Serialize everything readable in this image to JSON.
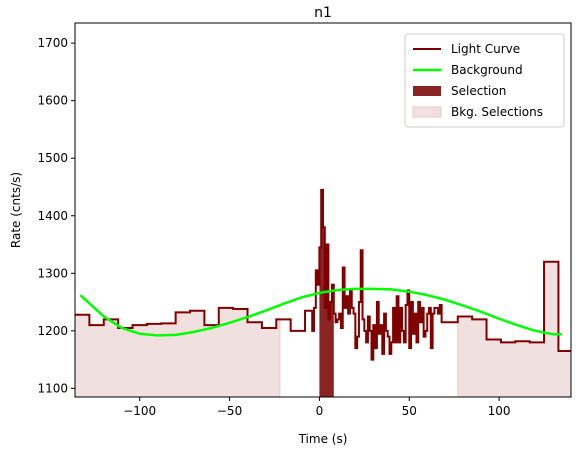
{
  "chart_data": {
    "type": "line",
    "title": "n1",
    "xlabel": "Time (s)",
    "ylabel": "Rate (cnts/s)",
    "xlim": [
      -136,
      140
    ],
    "ylim": [
      1085,
      1735
    ],
    "xticks": [
      -100,
      -50,
      0,
      50,
      100
    ],
    "yticks": [
      1100,
      1200,
      1300,
      1400,
      1500,
      1600,
      1700
    ],
    "legend_position": "top-right",
    "colors": {
      "light_curve": "#800000",
      "background": "#00ff00",
      "selection": "#8b2323",
      "bkg_selection": "#f0e0e0",
      "bkg_selection_edge": "#e8c8c8"
    },
    "legend": [
      {
        "label": "Light Curve",
        "kind": "line",
        "color": "#800000"
      },
      {
        "label": "Background",
        "kind": "line",
        "color": "#00ff00"
      },
      {
        "label": "Selection",
        "kind": "patch",
        "color": "#8b2323"
      },
      {
        "label": "Bkg. Selections",
        "kind": "patch",
        "color": "#f0e0e0"
      }
    ],
    "bkg_selections": [
      {
        "x_start": -136,
        "x_end": -22
      },
      {
        "x_start": 77,
        "x_end": 140
      }
    ],
    "selection": {
      "x_start": 0,
      "x_end": 8
    },
    "background_series": {
      "name": "Background",
      "x": [
        -133,
        -120,
        -110,
        -100,
        -90,
        -80,
        -70,
        -60,
        -50,
        -40,
        -30,
        -20,
        -10,
        0,
        10,
        20,
        30,
        40,
        50,
        60,
        70,
        80,
        90,
        100,
        110,
        120,
        130,
        135
      ],
      "y": [
        1262,
        1225,
        1205,
        1195,
        1192,
        1193,
        1198,
        1205,
        1214,
        1224,
        1235,
        1247,
        1258,
        1266,
        1271,
        1273,
        1273,
        1272,
        1268,
        1262,
        1254,
        1244,
        1233,
        1221,
        1210,
        1200,
        1194,
        1194
      ]
    },
    "light_curve": {
      "name": "Light Curve",
      "x": [
        -136,
        -128,
        -120,
        -112,
        -104,
        -96,
        -88,
        -80,
        -72,
        -64,
        -56,
        -48,
        -40,
        -32,
        -24,
        -16,
        -8,
        -4,
        -3,
        -2,
        -1,
        0,
        1,
        2,
        3,
        4,
        5,
        6,
        7,
        8,
        9,
        10,
        11,
        12,
        13,
        14,
        15,
        16,
        17,
        18,
        19,
        20,
        21,
        22,
        23,
        24,
        25,
        26,
        27,
        28,
        29,
        30,
        31,
        32,
        33,
        34,
        35,
        36,
        37,
        38,
        39,
        40,
        41,
        42,
        43,
        44,
        45,
        46,
        47,
        48,
        49,
        50,
        51,
        52,
        53,
        54,
        55,
        56,
        57,
        58,
        59,
        60,
        61,
        62,
        63,
        64,
        65,
        66,
        67,
        68,
        77,
        85,
        93,
        101,
        109,
        117,
        125,
        133
      ],
      "y": [
        1228,
        1210,
        1220,
        1205,
        1210,
        1212,
        1213,
        1232,
        1235,
        1210,
        1240,
        1238,
        1215,
        1205,
        1220,
        1200,
        1235,
        1200,
        1240,
        1305,
        1280,
        1345,
        1445,
        1380,
        1240,
        1350,
        1220,
        1250,
        1280,
        1230,
        1215,
        1220,
        1230,
        1205,
        1310,
        1240,
        1260,
        1230,
        1270,
        1240,
        1230,
        1170,
        1190,
        1250,
        1340,
        1220,
        1200,
        1180,
        1225,
        1200,
        1150,
        1210,
        1170,
        1250,
        1195,
        1210,
        1160,
        1230,
        1200,
        1190,
        1160,
        1180,
        1240,
        1180,
        1260,
        1180,
        1240,
        1200,
        1180,
        1245,
        1270,
        1170,
        1250,
        1195,
        1230,
        1180,
        1250,
        1215,
        1240,
        1190,
        1200,
        1230,
        1240,
        1170,
        1230,
        1240,
        1240,
        1230,
        1245,
        1215,
        1225,
        1220,
        1185,
        1180,
        1182,
        1180,
        1320,
        1165
      ]
    }
  }
}
